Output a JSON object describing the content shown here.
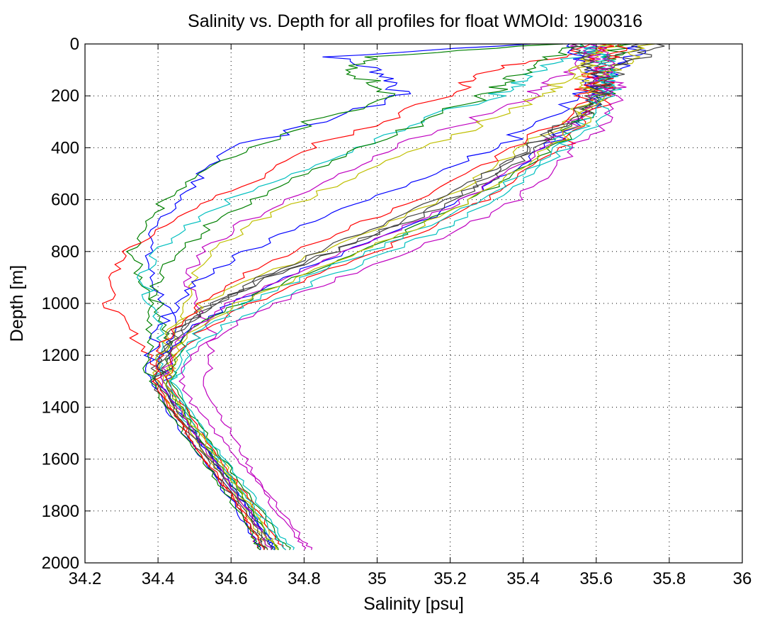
{
  "chart_data": {
    "type": "line",
    "title": "Salinity vs. Depth for all profiles for float WMOId: 1900316",
    "xlabel": "Salinity [psu]",
    "ylabel": "Depth [m]",
    "xlim": [
      34.2,
      36
    ],
    "ylim": [
      0,
      2000
    ],
    "y_reversed": true,
    "grid": true,
    "x_ticks": [
      "34.2",
      "34.4",
      "34.6",
      "34.8",
      "35",
      "35.2",
      "35.4",
      "35.6",
      "35.8",
      "36"
    ],
    "y_ticks": [
      "0",
      "200",
      "400",
      "600",
      "800",
      "1000",
      "1200",
      "1400",
      "1600",
      "1800",
      "2000"
    ],
    "series_colors": [
      "#0000ff",
      "#008000",
      "#ff0000",
      "#00bfbf",
      "#bf00bf",
      "#bfbf00",
      "#404040"
    ],
    "profile_depths": [
      0,
      50,
      100,
      150,
      200,
      300,
      400,
      500,
      600,
      700,
      800,
      900,
      1000,
      1100,
      1200,
      1300,
      1400,
      1500,
      1600,
      1700,
      1800,
      1900,
      1950
    ],
    "series": [
      {
        "salinity": [
          35.42,
          34.88,
          35.0,
          35.05,
          35.06,
          34.85,
          34.6,
          34.52,
          34.46,
          34.4,
          34.37,
          34.38,
          34.42,
          34.44,
          34.44,
          34.42,
          34.46,
          34.5,
          34.55,
          34.6,
          34.65,
          34.7,
          34.72
        ]
      },
      {
        "salinity": [
          35.5,
          35.0,
          34.9,
          35.0,
          35.05,
          34.82,
          34.65,
          34.5,
          34.42,
          34.36,
          34.33,
          34.35,
          34.4,
          34.42,
          34.43,
          34.44,
          34.48,
          34.53,
          34.58,
          34.63,
          34.68,
          34.73,
          34.76
        ]
      },
      {
        "salinity": [
          35.6,
          35.5,
          35.3,
          35.25,
          35.2,
          35.0,
          34.82,
          34.7,
          34.55,
          34.42,
          34.32,
          34.28,
          34.26,
          34.32,
          34.38,
          34.4,
          34.44,
          34.48,
          34.53,
          34.58,
          34.63,
          34.66,
          34.68
        ]
      },
      {
        "salinity": [
          35.62,
          35.55,
          35.45,
          35.4,
          35.32,
          35.1,
          34.95,
          34.78,
          34.6,
          34.48,
          34.4,
          34.36,
          34.38,
          34.42,
          34.4,
          34.4,
          34.45,
          34.5,
          34.56,
          34.6,
          34.66,
          34.7,
          34.72
        ]
      },
      {
        "salinity": [
          35.6,
          35.58,
          35.55,
          35.48,
          35.42,
          35.25,
          35.05,
          34.9,
          34.75,
          34.62,
          34.52,
          34.48,
          34.5,
          34.55,
          34.55,
          34.52,
          34.56,
          34.6,
          34.64,
          34.68,
          34.72,
          34.78,
          34.8
        ]
      },
      {
        "salinity": [
          35.65,
          35.6,
          35.55,
          35.5,
          35.45,
          35.3,
          35.12,
          34.95,
          34.8,
          34.65,
          34.55,
          34.5,
          34.48,
          34.46,
          34.44,
          34.42,
          34.46,
          34.52,
          34.57,
          34.62,
          34.67,
          34.71,
          34.73
        ]
      },
      {
        "salinity": [
          35.7,
          35.68,
          35.62,
          35.6,
          35.6,
          35.52,
          35.42,
          35.32,
          35.2,
          35.05,
          34.88,
          34.7,
          34.55,
          34.45,
          34.4,
          34.38,
          34.43,
          34.48,
          34.53,
          34.58,
          34.63,
          34.67,
          34.69
        ]
      },
      {
        "salinity": [
          35.72,
          35.7,
          35.65,
          35.62,
          35.6,
          35.55,
          35.46,
          35.36,
          35.24,
          35.1,
          34.92,
          34.74,
          34.6,
          34.48,
          34.42,
          34.4,
          34.45,
          34.5,
          34.55,
          34.6,
          34.65,
          34.7,
          34.72
        ]
      },
      {
        "salinity": [
          35.68,
          35.65,
          35.62,
          35.62,
          35.62,
          35.56,
          35.48,
          35.38,
          35.26,
          35.12,
          34.96,
          34.78,
          34.62,
          34.5,
          34.44,
          34.42,
          34.46,
          34.51,
          34.56,
          34.61,
          34.66,
          34.7,
          34.73
        ]
      },
      {
        "salinity": [
          35.62,
          35.6,
          35.6,
          35.62,
          35.63,
          35.58,
          35.5,
          35.4,
          35.3,
          35.15,
          35.0,
          34.82,
          34.66,
          34.52,
          34.45,
          34.43,
          34.47,
          34.52,
          34.57,
          34.62,
          34.67,
          34.72,
          34.75
        ]
      },
      {
        "salinity": [
          35.58,
          35.6,
          35.62,
          35.64,
          35.64,
          35.6,
          35.52,
          35.43,
          35.33,
          35.2,
          35.04,
          34.86,
          34.7,
          34.56,
          34.48,
          34.44,
          34.48,
          34.53,
          34.58,
          34.64,
          34.69,
          34.74,
          34.77
        ]
      },
      {
        "salinity": [
          35.55,
          35.6,
          35.63,
          35.65,
          35.66,
          35.62,
          35.55,
          35.47,
          35.38,
          35.25,
          35.08,
          34.9,
          34.72,
          34.58,
          34.5,
          34.46,
          34.5,
          34.56,
          34.62,
          34.68,
          34.74,
          34.79,
          34.82
        ]
      },
      {
        "salinity": [
          35.75,
          35.7,
          35.64,
          35.6,
          35.58,
          35.5,
          35.4,
          35.3,
          35.18,
          35.02,
          34.85,
          34.66,
          34.52,
          34.44,
          34.41,
          34.4,
          34.44,
          34.49,
          34.54,
          34.59,
          34.64,
          34.68,
          34.7
        ]
      },
      {
        "salinity": [
          35.8,
          35.72,
          35.66,
          35.62,
          35.6,
          35.54,
          35.44,
          35.34,
          35.22,
          35.06,
          34.88,
          34.7,
          34.56,
          34.46,
          34.42,
          34.41,
          34.45,
          34.5,
          34.55,
          34.6,
          34.65,
          34.69,
          34.71
        ]
      },
      {
        "salinity": [
          35.5,
          35.55,
          35.58,
          35.58,
          35.56,
          35.46,
          35.32,
          35.15,
          34.98,
          34.8,
          34.64,
          34.52,
          34.45,
          34.4,
          34.38,
          34.38,
          34.42,
          34.47,
          34.52,
          34.57,
          34.62,
          34.66,
          34.68
        ]
      },
      {
        "salinity": [
          35.55,
          35.48,
          35.4,
          35.35,
          35.3,
          35.12,
          34.95,
          34.8,
          34.66,
          34.54,
          34.46,
          34.4,
          34.38,
          34.38,
          34.37,
          34.38,
          34.42,
          34.47,
          34.52,
          34.57,
          34.62,
          34.66,
          34.68
        ]
      },
      {
        "salinity": [
          35.66,
          35.64,
          35.6,
          35.58,
          35.57,
          35.5,
          35.38,
          35.25,
          35.1,
          34.94,
          34.78,
          34.62,
          34.52,
          34.44,
          34.4,
          34.39,
          34.43,
          34.48,
          34.53,
          34.58,
          34.63,
          34.67,
          34.69
        ]
      },
      {
        "salinity": [
          35.56,
          35.62,
          35.64,
          35.63,
          35.62,
          35.57,
          35.49,
          35.4,
          35.28,
          35.14,
          34.98,
          34.8,
          34.64,
          34.52,
          34.46,
          34.43,
          34.47,
          34.52,
          34.57,
          34.62,
          34.67,
          34.72,
          34.75
        ]
      },
      {
        "salinity": [
          35.6,
          35.66,
          35.62,
          35.6,
          35.6,
          35.55,
          35.46,
          35.36,
          35.24,
          35.08,
          34.92,
          34.74,
          34.6,
          34.48,
          34.43,
          34.41,
          34.45,
          34.5,
          34.55,
          34.6,
          34.65,
          34.69,
          34.71
        ]
      },
      {
        "salinity": [
          35.64,
          35.58,
          35.56,
          35.58,
          35.6,
          35.56,
          35.47,
          35.37,
          35.26,
          35.12,
          34.95,
          34.78,
          34.62,
          34.5,
          34.44,
          34.42,
          34.46,
          34.51,
          34.56,
          34.61,
          34.66,
          34.7,
          34.72
        ]
      },
      {
        "salinity": [
          35.52,
          35.56,
          35.6,
          35.62,
          35.61,
          35.53,
          35.42,
          35.3,
          35.16,
          35.0,
          34.84,
          34.68,
          34.56,
          34.47,
          34.42,
          34.4,
          34.44,
          34.49,
          34.54,
          34.59,
          34.64,
          34.68,
          34.7
        ]
      }
    ]
  }
}
